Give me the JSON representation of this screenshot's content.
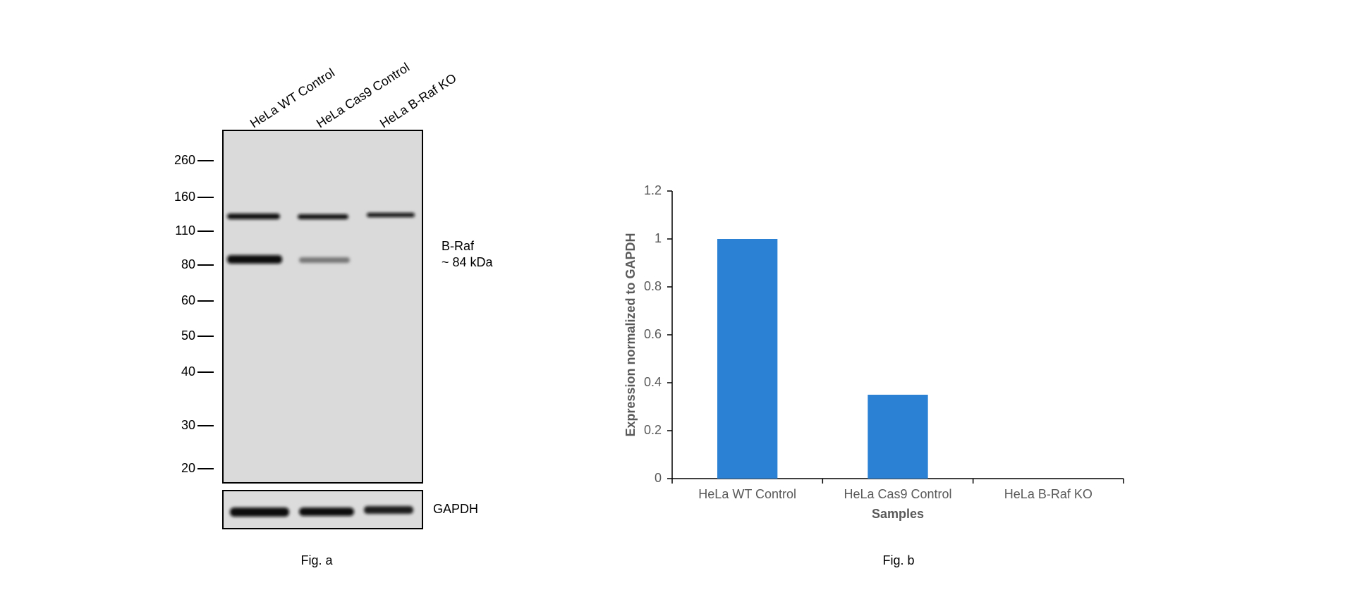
{
  "figure_a": {
    "lanes": [
      "HeLa WT Control",
      "HeLa Cas9 Control",
      "HeLa B-Raf KO"
    ],
    "markers": [
      260,
      160,
      110,
      80,
      60,
      50,
      40,
      30,
      20
    ],
    "band_label": "B-Raf",
    "band_size": "~ 84 kDa",
    "loading_control": "GAPDH",
    "caption": "Fig. a"
  },
  "chart_data": {
    "type": "bar",
    "categories": [
      "HeLa WT Control",
      "HeLa Cas9 Control",
      "HeLa B-Raf KO"
    ],
    "values": [
      1,
      0.35,
      0
    ],
    "color": "#2b82d4",
    "ylim": [
      0,
      1.2
    ],
    "yticks": [
      0,
      0.2,
      0.4,
      0.6,
      0.8,
      1,
      1.2
    ],
    "x_label": "Samples",
    "y_label": "Expression normalized to GAPDH",
    "caption": "Fig. b"
  }
}
